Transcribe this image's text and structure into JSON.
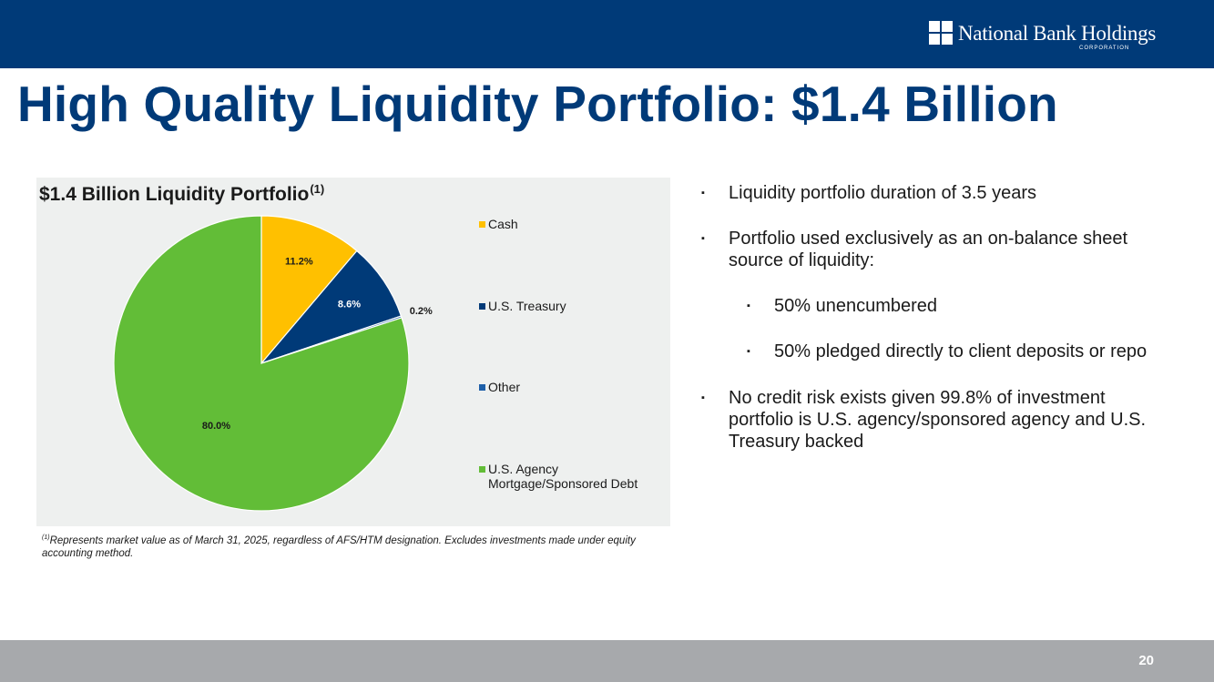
{
  "header": {
    "logo_text": "National Bank Holdings",
    "logo_subtext": "CORPORATION"
  },
  "page_title": "High Quality Liquidity Portfolio: $1.4 Billion",
  "chart_data": {
    "type": "pie",
    "title": "$1.4 Billion Liquidity Portfolio",
    "title_superscript": "(1)",
    "start_angle_deg": 0,
    "direction": "clockwise",
    "slices": [
      {
        "name": "Cash",
        "value": 11.2,
        "label": "11.2%",
        "color": "#ffc000"
      },
      {
        "name": "U.S. Treasury",
        "value": 8.6,
        "label": "8.6%",
        "color": "#003a78"
      },
      {
        "name": "Other",
        "value": 0.2,
        "label": "0.2%",
        "color": "#1e5fa8"
      },
      {
        "name": "U.S. Agency Mortgage/Sponsored Debt",
        "value": 80.0,
        "label": "80.0%",
        "color": "#62bd37"
      }
    ],
    "legend": [
      {
        "line1": "Cash",
        "line2": ""
      },
      {
        "line1": "U.S. Treasury",
        "line2": ""
      },
      {
        "line1": "Other",
        "line2": ""
      },
      {
        "line1": "U.S. Agency",
        "line2": "Mortgage/Sponsored Debt"
      }
    ],
    "legend_position": "right"
  },
  "footnote": {
    "marker": "(1)",
    "text": "Represents market value as of March 31, 2025, regardless of AFS/HTM designation. Excludes investments made under equity accounting method."
  },
  "bullets": {
    "marker": "▪",
    "b1": "Liquidity portfolio duration of 3.5 years",
    "b2": "Portfolio used exclusively as an on-balance sheet source of liquidity:",
    "b2_sub1": "50% unencumbered",
    "b2_sub2": "50% pledged directly to client deposits or repo",
    "b3": "No credit risk exists given 99.8% of investment portfolio is U.S. agency/sponsored agency and U.S. Treasury backed"
  },
  "footer": {
    "page_number": "20"
  }
}
